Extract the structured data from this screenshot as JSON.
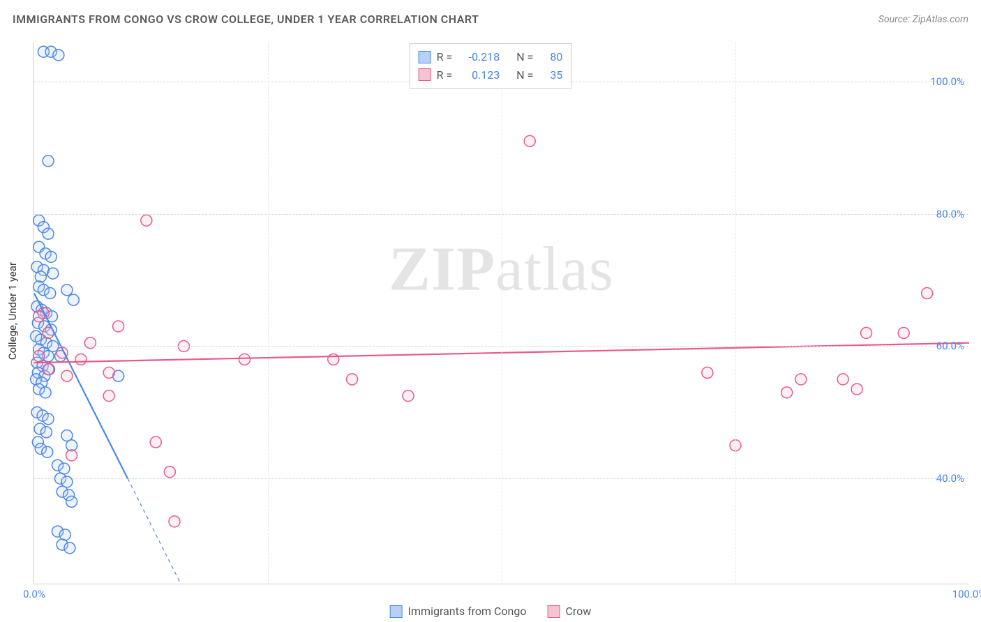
{
  "header": {
    "title": "IMMIGRANTS FROM CONGO VS CROW COLLEGE, UNDER 1 YEAR CORRELATION CHART",
    "source_prefix": "Source: ",
    "source_name": "ZipAtlas.com"
  },
  "watermark": {
    "zip": "ZIP",
    "atlas": "atlas"
  },
  "yaxis_label": "College, Under 1 year",
  "chart": {
    "type": "scatter",
    "xlim": [
      0,
      100
    ],
    "ylim": [
      24,
      106
    ],
    "xtick_positions": [
      0,
      25,
      50,
      75,
      100
    ],
    "xtick_labels": [
      "0.0%",
      "",
      "",
      "",
      "100.0%"
    ],
    "ytick_positions": [
      40,
      60,
      80,
      100
    ],
    "ytick_labels": [
      "40.0%",
      "60.0%",
      "80.0%",
      "100.0%"
    ],
    "tick_color": "#4a86e8",
    "grid_color": "#d8d8d8",
    "background_color": "#ffffff",
    "axis_color": "#cfcfcf",
    "marker_radius": 8,
    "marker_stroke_width": 1.5,
    "marker_fill_opacity": 0.25,
    "line_width": 2.2,
    "series": [
      {
        "name": "Immigrants from Congo",
        "color": "#4a86e8",
        "fill": "#b9d0f4",
        "R": "-0.218",
        "N": "80",
        "trend": {
          "x1": 0,
          "y1": 68,
          "x2": 10,
          "y2": 40,
          "ext_x2": 15.7,
          "ext_y2": 24
        },
        "points": [
          [
            1.0,
            104.5
          ],
          [
            1.8,
            104.5
          ],
          [
            2.6,
            104.0
          ],
          [
            1.5,
            88.0
          ],
          [
            0.5,
            79.0
          ],
          [
            1.0,
            78.0
          ],
          [
            1.5,
            77.0
          ],
          [
            0.5,
            75.0
          ],
          [
            1.2,
            74.0
          ],
          [
            1.8,
            73.5
          ],
          [
            0.3,
            72.0
          ],
          [
            1.0,
            71.5
          ],
          [
            2.0,
            71.0
          ],
          [
            0.7,
            70.5
          ],
          [
            0.5,
            69.0
          ],
          [
            1.0,
            68.5
          ],
          [
            1.7,
            68.0
          ],
          [
            3.5,
            68.5
          ],
          [
            4.2,
            67.0
          ],
          [
            0.3,
            66.0
          ],
          [
            0.8,
            65.5
          ],
          [
            1.3,
            65.0
          ],
          [
            1.9,
            64.5
          ],
          [
            0.4,
            63.5
          ],
          [
            1.1,
            63.0
          ],
          [
            1.8,
            62.5
          ],
          [
            0.2,
            61.5
          ],
          [
            0.7,
            61.0
          ],
          [
            1.3,
            60.5
          ],
          [
            2.0,
            60.0
          ],
          [
            0.5,
            59.5
          ],
          [
            1.0,
            59.0
          ],
          [
            1.5,
            58.5
          ],
          [
            2.8,
            58.5
          ],
          [
            0.3,
            57.5
          ],
          [
            0.9,
            57.0
          ],
          [
            1.6,
            56.5
          ],
          [
            0.4,
            56.0
          ],
          [
            1.1,
            55.5
          ],
          [
            9.0,
            55.5
          ],
          [
            0.2,
            55.0
          ],
          [
            0.8,
            54.5
          ],
          [
            0.5,
            53.5
          ],
          [
            1.2,
            53.0
          ],
          [
            0.3,
            50.0
          ],
          [
            0.9,
            49.5
          ],
          [
            1.5,
            49.0
          ],
          [
            0.6,
            47.5
          ],
          [
            1.3,
            47.0
          ],
          [
            3.5,
            46.5
          ],
          [
            0.4,
            45.5
          ],
          [
            4.0,
            45.0
          ],
          [
            0.7,
            44.5
          ],
          [
            1.4,
            44.0
          ],
          [
            2.5,
            42.0
          ],
          [
            3.2,
            41.5
          ],
          [
            2.8,
            40.0
          ],
          [
            3.5,
            39.5
          ],
          [
            3.0,
            38.0
          ],
          [
            3.7,
            37.5
          ],
          [
            4.0,
            36.5
          ],
          [
            2.5,
            32.0
          ],
          [
            3.3,
            31.5
          ],
          [
            3.0,
            30.0
          ],
          [
            3.8,
            29.5
          ]
        ]
      },
      {
        "name": "Crow",
        "color": "#e85a8a",
        "fill": "#f6c3d3",
        "R": "0.123",
        "N": "35",
        "trend": {
          "x1": 0,
          "y1": 57.5,
          "x2": 100,
          "y2": 60.5
        },
        "points": [
          [
            53.0,
            91.0
          ],
          [
            12.0,
            79.0
          ],
          [
            1.0,
            65.0
          ],
          [
            0.5,
            64.5
          ],
          [
            9.0,
            63.0
          ],
          [
            95.5,
            68.0
          ],
          [
            1.5,
            62.0
          ],
          [
            6.0,
            60.5
          ],
          [
            16.0,
            60.0
          ],
          [
            89.0,
            62.0
          ],
          [
            93.0,
            62.0
          ],
          [
            3.0,
            59.0
          ],
          [
            0.5,
            58.5
          ],
          [
            5.0,
            58.0
          ],
          [
            22.5,
            58.0
          ],
          [
            32.0,
            58.0
          ],
          [
            1.5,
            56.5
          ],
          [
            8.0,
            56.0
          ],
          [
            72.0,
            56.0
          ],
          [
            3.5,
            55.5
          ],
          [
            34.0,
            55.0
          ],
          [
            82.0,
            55.0
          ],
          [
            86.5,
            55.0
          ],
          [
            8.0,
            52.5
          ],
          [
            40.0,
            52.5
          ],
          [
            80.5,
            53.0
          ],
          [
            88.0,
            53.5
          ],
          [
            13.0,
            45.5
          ],
          [
            75.0,
            45.0
          ],
          [
            4.0,
            43.5
          ],
          [
            14.5,
            41.0
          ],
          [
            15.0,
            33.5
          ]
        ]
      }
    ]
  },
  "legend_top": {
    "r_label": "R =",
    "n_label": "N ="
  },
  "legend_bottom": {
    "items": [
      "Immigrants from Congo",
      "Crow"
    ]
  }
}
